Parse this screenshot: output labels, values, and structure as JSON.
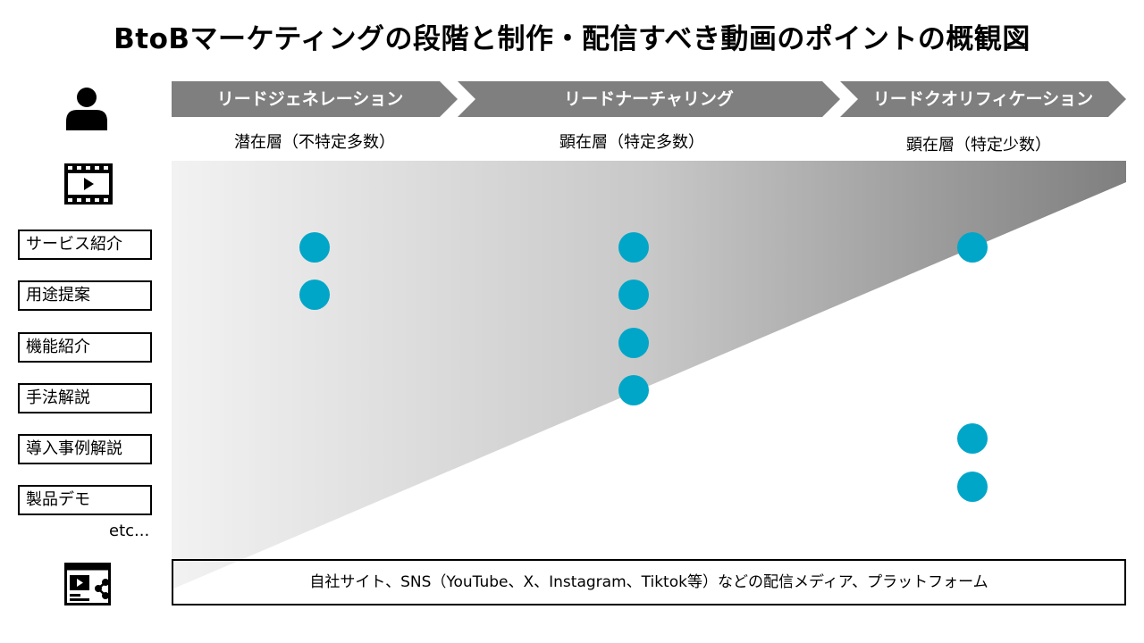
{
  "title": "BtoBマーケティングの段階と制作・配信すべき動画のポイントの概観図",
  "stages": [
    {
      "label": "リードジェネレーション",
      "segment": "潜在層（不特定多数）"
    },
    {
      "label": "リードナーチャリング",
      "segment": "顕在層（特定多数）"
    },
    {
      "label": "リードクオリフィケーション",
      "segment": "顕在層（特定少数）"
    }
  ],
  "content_types": [
    "サービス紹介",
    "用途提案",
    "機能紹介",
    "手法解説",
    "導入事例解説",
    "製品デモ"
  ],
  "etc_label": "etc...",
  "platform_label": "自社サイト、SNS（YouTube、X、Instagram、Tiktok等）などの配信メディア、プラットフォーム",
  "icons": {
    "person": "person-icon",
    "video": "video-film-icon",
    "platform": "video-share-icon"
  },
  "colors": {
    "stage_arrow": "#7f7f7f",
    "dot": "#00a6c8",
    "gradient_start": "#f2f2f2",
    "gradient_end": "#7f7f7f"
  },
  "matrix": [
    {
      "content": "サービス紹介",
      "stages": [
        true,
        true,
        true
      ]
    },
    {
      "content": "用途提案",
      "stages": [
        true,
        true,
        false
      ]
    },
    {
      "content": "機能紹介",
      "stages": [
        false,
        true,
        false
      ]
    },
    {
      "content": "手法解説",
      "stages": [
        false,
        true,
        false
      ]
    },
    {
      "content": "導入事例解説",
      "stages": [
        false,
        false,
        true
      ]
    },
    {
      "content": "製品デモ",
      "stages": [
        false,
        false,
        true
      ]
    }
  ]
}
